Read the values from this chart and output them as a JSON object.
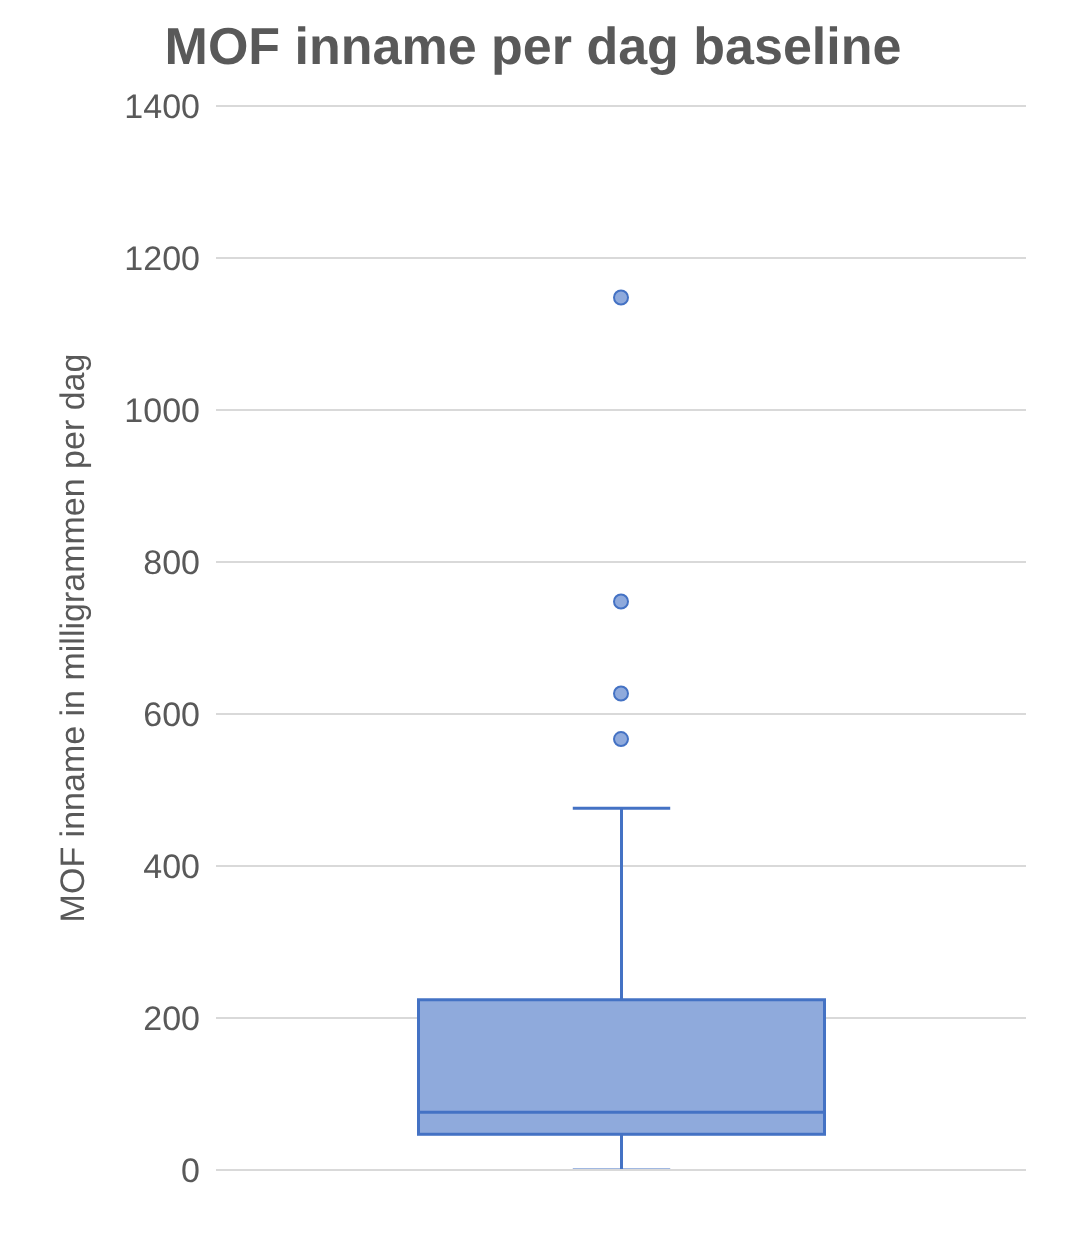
{
  "chart_data": {
    "type": "box",
    "title": "MOF inname per dag baseline",
    "ylabel": "MOF inname in milligrammen per dag",
    "categories": [
      null
    ],
    "boxes": [
      {
        "low": 0,
        "q1": 47,
        "median": 76,
        "q3": 224,
        "high": 476,
        "outliers": [
          567,
          627,
          748,
          1148
        ]
      }
    ],
    "color": "#4472c4",
    "ylim": [
      0,
      1400
    ],
    "yticks": [
      0,
      200,
      400,
      600,
      800,
      1000,
      1200,
      1400
    ],
    "grid": "y"
  }
}
